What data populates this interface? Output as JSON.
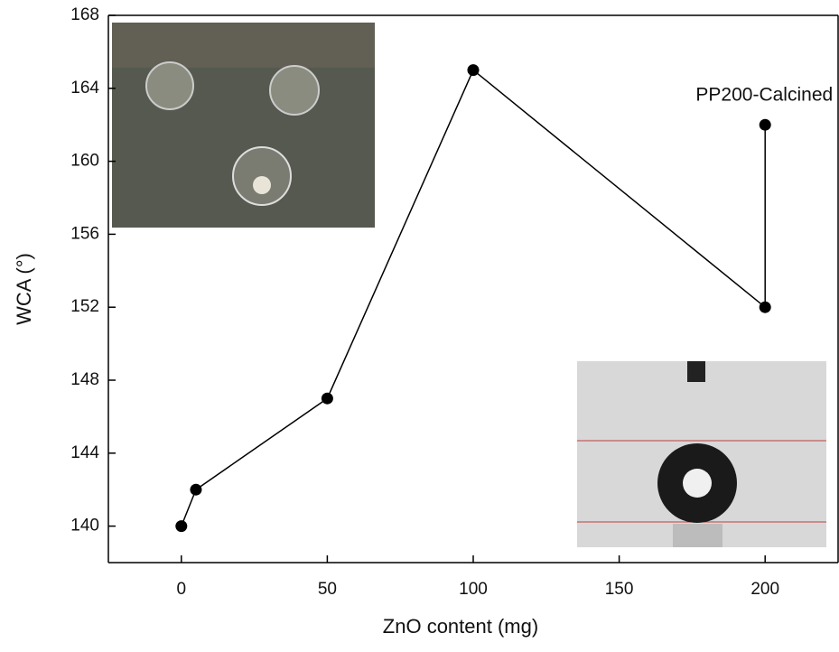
{
  "chart_data": {
    "type": "line",
    "x": [
      0,
      5,
      50,
      100,
      200,
      200
    ],
    "values": [
      140,
      142,
      147,
      165,
      152,
      162
    ],
    "color": "#000000",
    "xlabel": "ZnO content (mg)",
    "ylabel": "WCA (°)",
    "annotations": [
      "PP200-Calcined"
    ],
    "xlim": [
      -25,
      225
    ],
    "xticks": [
      0,
      50,
      100,
      150,
      200
    ],
    "ylim": [
      138,
      168
    ],
    "yticks": [
      140,
      144,
      148,
      152,
      156,
      160,
      164,
      168
    ]
  }
}
